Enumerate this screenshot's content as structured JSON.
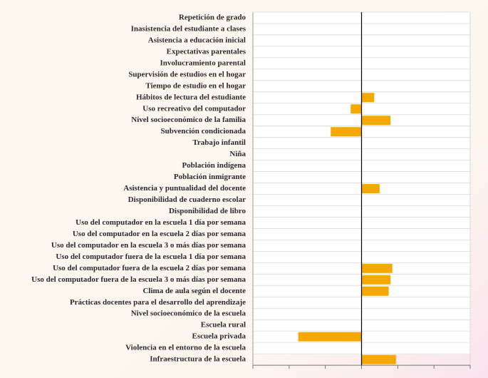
{
  "chart_data": {
    "type": "barh",
    "categories": [
      "Repetición de grado",
      "Inasistencia del estudiante a clases",
      "Asistencia a educación inicial",
      "Expectativas parentales",
      "Involucramiento parental",
      "Supervisión de estudios en el hogar",
      "Tiempo de estudio en el hogar",
      "Hábitos de lectura del estudiante",
      "Uso recreativo del computador",
      "Nivel socioeconómico de la familia",
      "Subvención condicionada",
      "Trabajo infantil",
      "Niña",
      "Población indígena",
      "Población inmigrante",
      "Asistencia y puntualidad del docente",
      "Disponibilidad de cuaderno escolar",
      "Disponibilidad de libro",
      "Uso del computador en la escuela 1 día por semana",
      "Uso del computador en la escuela  2 días por semana",
      "Uso del computador en la escuela 3 o más días por semana",
      "Uso del computador fuera de la escuela 1 día por semana",
      "Uso del computador fuera de la escuela  2 días por semana",
      "Uso del computador fuera de la escuela 3 o más días por semana",
      "Clima de aula según el docente",
      "Prácticas docentes para el desarrollo del aprendizaje",
      "Nivel socioeconómico de la escuela",
      "Escuela rural",
      "Escuela privada",
      "Violencia en el entorno de la escuela",
      "Infraestructura de la escuela"
    ],
    "values": [
      null,
      null,
      null,
      null,
      null,
      null,
      null,
      7,
      -6,
      16,
      -17,
      null,
      null,
      null,
      null,
      10,
      null,
      null,
      null,
      null,
      null,
      null,
      17,
      16,
      15,
      null,
      null,
      null,
      -35,
      null,
      19
    ],
    "color": "#f5a800",
    "xlim": [
      -60,
      60
    ],
    "xticks": [
      -60,
      -40,
      -20,
      0,
      20,
      40,
      60
    ],
    "grid": true
  }
}
